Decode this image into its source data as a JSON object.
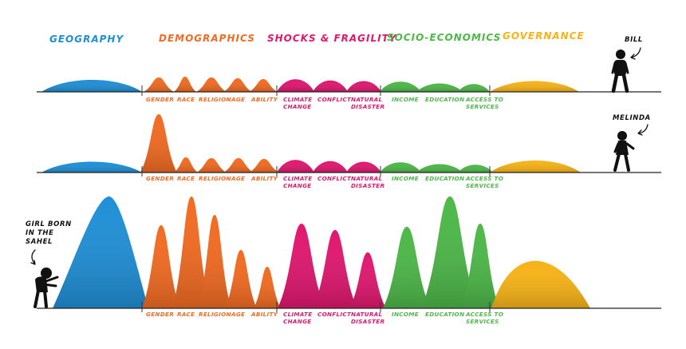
{
  "colors": {
    "geography": "#1f8fd6",
    "demographics": "#f26b22",
    "shocks": "#e0176f",
    "socio": "#4db848",
    "governance": "#f7b317",
    "ink": "#111111"
  },
  "categories": [
    {
      "key": "geography",
      "label": "Geography"
    },
    {
      "key": "demographics",
      "label": "Demographics"
    },
    {
      "key": "shocks",
      "label": "Shocks & Fragility"
    },
    {
      "key": "socio",
      "label": "Socio-Economics"
    },
    {
      "key": "governance",
      "label": "Governance"
    }
  ],
  "factors": [
    {
      "key": "gender",
      "label": "GENDER",
      "group": "demographics"
    },
    {
      "key": "race",
      "label": "RACE",
      "group": "demographics"
    },
    {
      "key": "religion",
      "label": "RELIGION",
      "group": "demographics"
    },
    {
      "key": "age",
      "label": "AGE",
      "group": "demographics"
    },
    {
      "key": "ability",
      "label": "ABILITY",
      "group": "demographics"
    },
    {
      "key": "climate",
      "label": "CLIMATE\nCHANGE",
      "group": "shocks"
    },
    {
      "key": "conflict",
      "label": "CONFLICT",
      "group": "shocks"
    },
    {
      "key": "natural",
      "label": "NATURAL\nDISASTER",
      "group": "shocks"
    },
    {
      "key": "income",
      "label": "INCOME",
      "group": "socio"
    },
    {
      "key": "education",
      "label": "EDUCATION",
      "group": "socio"
    },
    {
      "key": "access",
      "label": "ACCESS TO\nSERVICES",
      "group": "socio"
    }
  ],
  "people": [
    {
      "key": "bill",
      "label": "BILL"
    },
    {
      "key": "melinda",
      "label": "MELINDA"
    },
    {
      "key": "girl",
      "label": "GIRL BORN\nIN THE\nSAHEL"
    }
  ]
}
